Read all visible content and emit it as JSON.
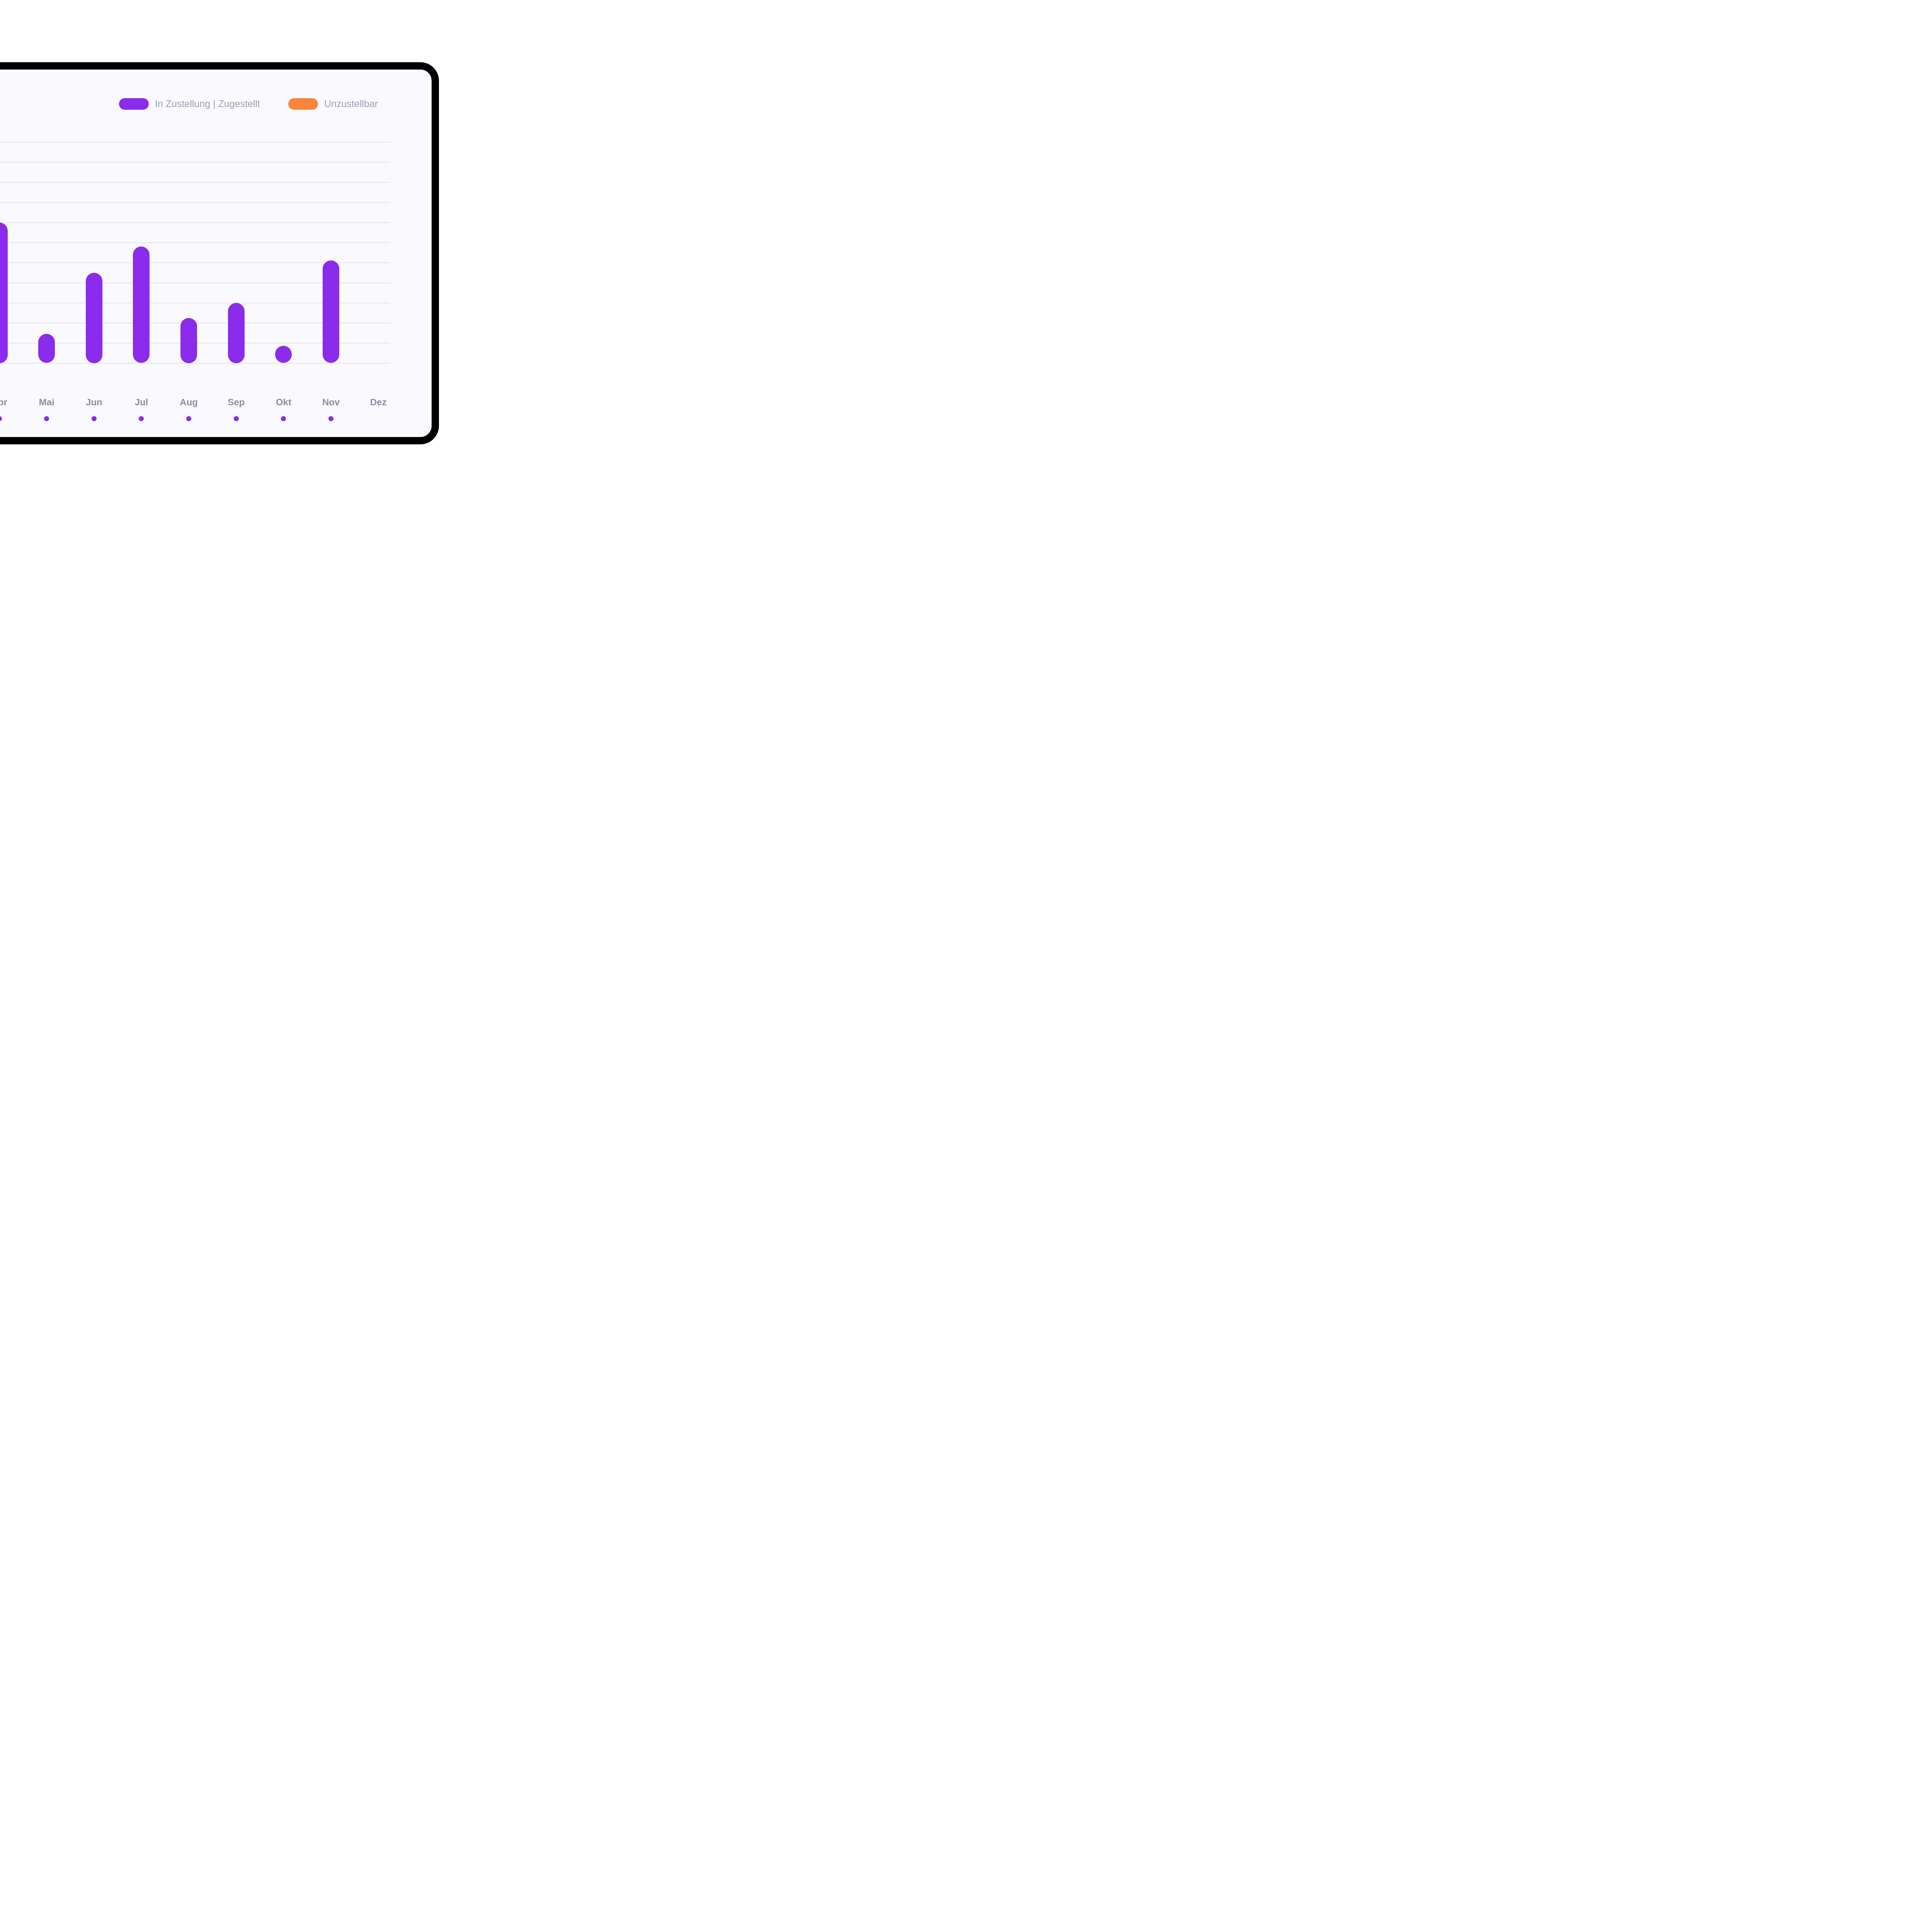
{
  "panel": {
    "background": "#FAFAFE",
    "page_background": "#FFFFFF",
    "border_color": "#000000",
    "gridline_color": "#E4E4E9",
    "month_label_color": "#878DA2",
    "legend_text_color": "#9AA0B2"
  },
  "legend": {
    "items": [
      {
        "label": "In Zustellung | Zugestellt",
        "color": "#8B2BEB"
      },
      {
        "label": "Unzustellbar",
        "color": "#F9853A"
      }
    ]
  },
  "chart_data": {
    "type": "bar",
    "title": "",
    "xlabel": "",
    "ylabel": "",
    "categories": [
      "Apr",
      "Mai",
      "Jun",
      "Jul",
      "Aug",
      "Sep",
      "Okt",
      "Nov",
      "Dez"
    ],
    "series": [
      {
        "name": "In Zustellung | Zugestellt",
        "color": "#8B2BEB",
        "values_est_gridline_units": [
          7.0,
          1.45,
          4.5,
          5.8,
          2.25,
          3.0,
          0.85,
          5.1,
          0
        ]
      },
      {
        "name": "Unzustellbar",
        "color": "#F9853A",
        "values_est_gridline_units": [
          0,
          0,
          0,
          0,
          0,
          0,
          0,
          0,
          0
        ]
      }
    ],
    "x_axis_marker_dots": [
      true,
      true,
      true,
      true,
      true,
      true,
      true,
      true,
      false
    ],
    "x_axis_dot_color": "#8B2BEB",
    "gridline_count": 12,
    "grid": true,
    "y_axis_tick_labels_visible": false,
    "legend_position": "top",
    "note_visible_crop": "left portion of chart (incl. Apr bar and y-axis) is cut off at image edge"
  }
}
